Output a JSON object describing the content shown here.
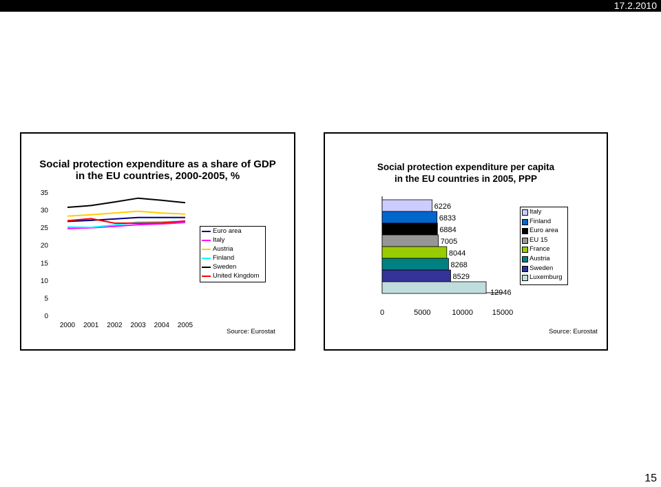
{
  "header": {
    "date": "17.2.2010"
  },
  "page_number": "15",
  "left_slide": {
    "title_line1": "Social protection expenditure as a share of GDP",
    "title_line2": "in the EU countries, 2000-2005, %",
    "source": "Source: Eurostat"
  },
  "right_slide": {
    "title_line1": "Social protection expenditure per capita",
    "title_line2": "in the EU countries in 2005, PPP",
    "source": "Source: Eurostat"
  },
  "chart_data": [
    {
      "type": "line",
      "title": "Social protection expenditure as a share of GDP in the EU countries, 2000-2005, %",
      "x": [
        "2000",
        "2001",
        "2002",
        "2003",
        "2004",
        "2005"
      ],
      "ylim": [
        0,
        35
      ],
      "yticks": [
        0,
        5,
        10,
        15,
        20,
        25,
        30,
        35
      ],
      "grid": false,
      "legend_position": "right",
      "series": [
        {
          "name": "Euro area",
          "color": "#000080",
          "values": [
            26.7,
            27.0,
            27.4,
            27.8,
            27.8,
            27.8
          ]
        },
        {
          "name": "Italy",
          "color": "#ff00ff",
          "values": [
            24.7,
            24.9,
            25.3,
            25.8,
            26.0,
            26.4
          ]
        },
        {
          "name": "Austria",
          "color": "#ffcc00",
          "values": [
            28.2,
            28.6,
            29.1,
            29.6,
            29.1,
            28.8
          ]
        },
        {
          "name": "Finland",
          "color": "#00ffff",
          "values": [
            25.1,
            25.0,
            25.7,
            26.5,
            26.6,
            26.7
          ]
        },
        {
          "name": "Sweden",
          "color": "#000000",
          "values": [
            30.7,
            31.2,
            32.2,
            33.3,
            32.7,
            32.0
          ]
        },
        {
          "name": "United Kingdom",
          "color": "#ff0000",
          "values": [
            26.9,
            27.5,
            26.2,
            26.2,
            26.3,
            26.8
          ]
        }
      ]
    },
    {
      "type": "bar",
      "orientation": "horizontal",
      "title": "Social protection expenditure per capita in the EU countries in 2005, PPP",
      "xlim": [
        0,
        15000
      ],
      "xticks": [
        0,
        5000,
        10000,
        15000
      ],
      "grid": false,
      "legend_position": "right",
      "series": [
        {
          "name": "Italy",
          "color": "#ccccff",
          "value": 6226
        },
        {
          "name": "Finland",
          "color": "#0066cc",
          "value": 6833
        },
        {
          "name": "Euro area",
          "color": "#000000",
          "value": 6884
        },
        {
          "name": "EU 15",
          "color": "#969696",
          "value": 7005
        },
        {
          "name": "France",
          "color": "#99cc00",
          "value": 8044
        },
        {
          "name": "Austria",
          "color": "#008080",
          "value": 8268
        },
        {
          "name": "Sweden",
          "color": "#333399",
          "value": 8529
        },
        {
          "name": "Luxemburg",
          "color": "#c0dcdc",
          "value": 12946
        }
      ]
    }
  ]
}
